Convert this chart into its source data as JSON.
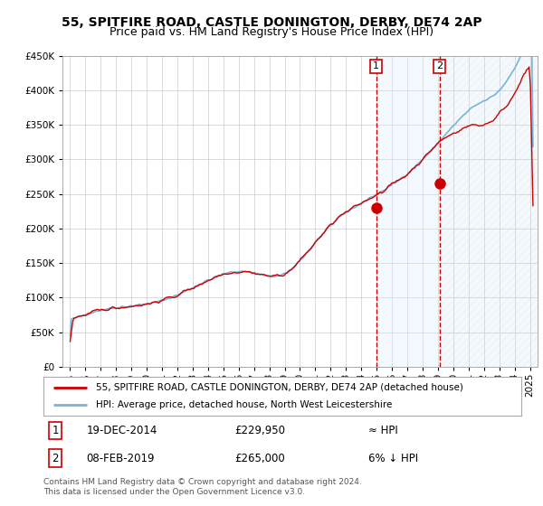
{
  "title": "55, SPITFIRE ROAD, CASTLE DONINGTON, DERBY, DE74 2AP",
  "subtitle": "Price paid vs. HM Land Registry's House Price Index (HPI)",
  "ylim": [
    0,
    450000
  ],
  "yticks": [
    0,
    50000,
    100000,
    150000,
    200000,
    250000,
    300000,
    350000,
    400000,
    450000
  ],
  "hpi_color": "#7ab4d8",
  "price_color": "#cc0000",
  "marker_color": "#cc0000",
  "vline_color": "#cc0000",
  "shade_color": "#ddeeff",
  "grid_color": "#cccccc",
  "background_color": "#ffffff",
  "purchase1": {
    "date_num": 2014.97,
    "price": 229950,
    "label": "1"
  },
  "purchase2": {
    "date_num": 2019.1,
    "price": 265000,
    "label": "2"
  },
  "legend1": "55, SPITFIRE ROAD, CASTLE DONINGTON, DERBY, DE74 2AP (detached house)",
  "legend2": "HPI: Average price, detached house, North West Leicestershire",
  "ann1_date": "19-DEC-2014",
  "ann1_price": "£229,950",
  "ann1_hpi": "≈ HPI",
  "ann2_date": "08-FEB-2019",
  "ann2_price": "£265,000",
  "ann2_hpi": "6% ↓ HPI",
  "footer": "Contains HM Land Registry data © Crown copyright and database right 2024.\nThis data is licensed under the Open Government Licence v3.0.",
  "title_fontsize": 10,
  "subtitle_fontsize": 9,
  "axis_fontsize": 8
}
